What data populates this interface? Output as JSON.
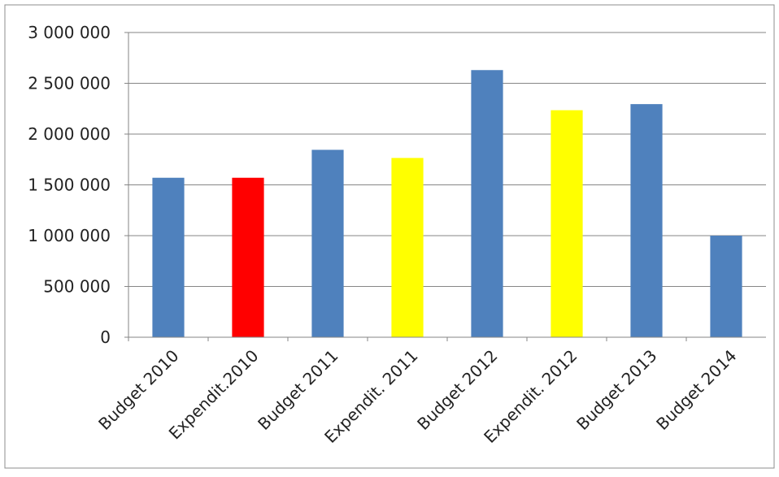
{
  "chart_data": {
    "type": "bar",
    "categories": [
      "Budget 2010",
      "Expendit.2010",
      "Budget 2011",
      "Expendit. 2011",
      "Budget 2012",
      "Expendit. 2012",
      "Budget 2013",
      "Budget 2014"
    ],
    "values": [
      1570000,
      1570000,
      1845000,
      1765000,
      2630000,
      2235000,
      2295000,
      1000000
    ],
    "bar_colors": [
      "#4f81bd",
      "#ff0000",
      "#4f81bd",
      "#ffff00",
      "#4f81bd",
      "#ffff00",
      "#4f81bd",
      "#4f81bd"
    ],
    "yticks": [
      0,
      500000,
      1000000,
      1500000,
      2000000,
      2500000,
      3000000
    ],
    "ytick_labels": [
      "0",
      "500 000",
      "1 000 000",
      "1 500 000",
      "2 000 000",
      "2 500 000",
      "3 000 000"
    ],
    "ylim": [
      0,
      3000000
    ],
    "grid": true,
    "legend": "none"
  }
}
